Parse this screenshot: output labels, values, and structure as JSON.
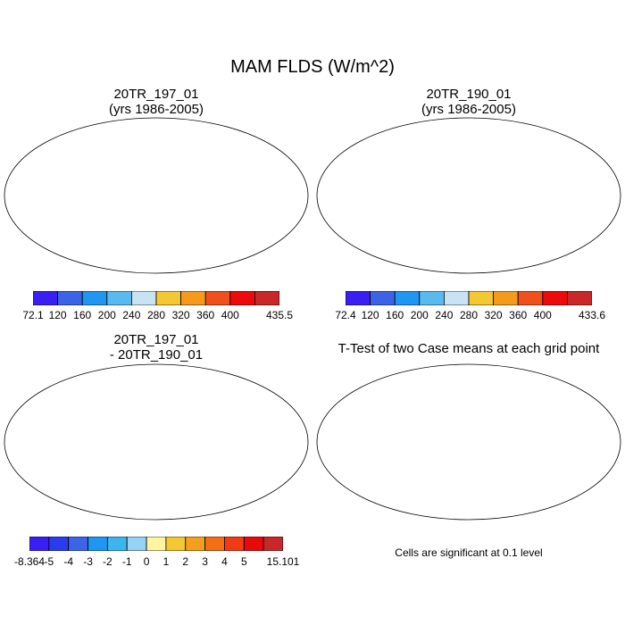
{
  "figure": {
    "title": "MAM FLDS (W/m^2)"
  },
  "panels": [
    {
      "title_line1": "20TR_197_01",
      "title_line2": "(yrs 1986-2005)",
      "colorbar": {
        "labels": [
          "72.1",
          "120",
          "160",
          "200",
          "240",
          "280",
          "320",
          "360",
          "400",
          "435.5"
        ],
        "colors": [
          "#3b1ef2",
          "#3c63e6",
          "#1e96f2",
          "#5ab9ee",
          "#c8e3f4",
          "#f4c832",
          "#f49b1e",
          "#f0501e",
          "#ec0a0a",
          "#c82828"
        ]
      }
    },
    {
      "title_line1": "20TR_190_01",
      "title_line2": "(yrs 1986-2005)",
      "colorbar": {
        "labels": [
          "72.4",
          "120",
          "160",
          "200",
          "240",
          "280",
          "320",
          "360",
          "400",
          "433.6"
        ],
        "colors": [
          "#3b1ef2",
          "#3c63e6",
          "#1e96f2",
          "#5ab9ee",
          "#c8e3f4",
          "#f4c832",
          "#f49b1e",
          "#f0501e",
          "#ec0a0a",
          "#c82828"
        ]
      }
    },
    {
      "title_line1": "20TR_197_01",
      "title_line2": "- 20TR_190_01",
      "colorbar": {
        "labels": [
          "-8.364",
          "-5",
          "-4",
          "-3",
          "-2",
          "-1",
          "0",
          "1",
          "2",
          "3",
          "4",
          "5",
          "15.101"
        ],
        "colors": [
          "#3b1ef2",
          "#2b3bf0",
          "#3c64e6",
          "#1e96f2",
          "#3cb4ee",
          "#96d2f4",
          "#fff5a0",
          "#f4c832",
          "#f4a01e",
          "#f46e14",
          "#f03c14",
          "#e60a0a",
          "#c82828"
        ]
      }
    },
    {
      "title_line1": "T-Test of two Case means at each grid point",
      "note": "Cells are significant at 0.1 level",
      "significant_color": "#ee0000"
    }
  ]
}
